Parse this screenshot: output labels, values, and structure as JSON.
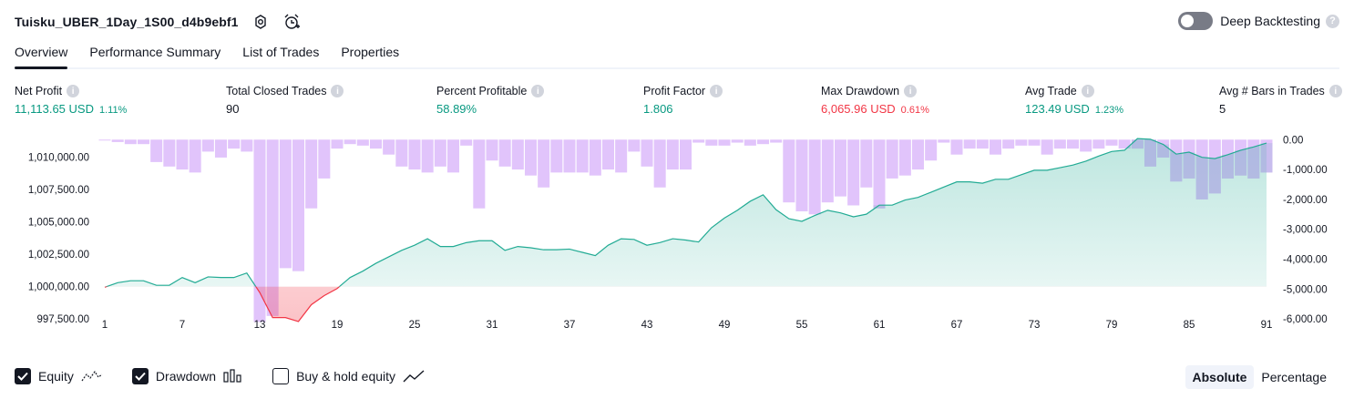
{
  "header": {
    "title": "Tuisku_UBER_1Day_1S00_d4b9ebf1",
    "deep_backtesting_label": "Deep Backtesting",
    "deep_backtesting_enabled": false
  },
  "tabs": [
    {
      "label": "Overview",
      "active": true
    },
    {
      "label": "Performance Summary",
      "active": false
    },
    {
      "label": "List of Trades",
      "active": false
    },
    {
      "label": "Properties",
      "active": false
    }
  ],
  "stats": [
    {
      "label": "Net Profit",
      "value": "11,113.65 USD",
      "pct": "1.11%",
      "color": "#089981"
    },
    {
      "label": "Total Closed Trades",
      "value": "90",
      "pct": "",
      "color": "#131722"
    },
    {
      "label": "Percent Profitable",
      "value": "58.89%",
      "pct": "",
      "color": "#089981"
    },
    {
      "label": "Profit Factor",
      "value": "1.806",
      "pct": "",
      "color": "#089981"
    },
    {
      "label": "Max Drawdown",
      "value": "6,065.96 USD",
      "pct": "0.61%",
      "color": "#f23645"
    },
    {
      "label": "Avg Trade",
      "value": "123.49 USD",
      "pct": "1.23%",
      "color": "#089981"
    },
    {
      "label": "Avg # Bars in Trades",
      "value": "5",
      "pct": "",
      "color": "#131722"
    }
  ],
  "legend": {
    "equity_label": "Equity",
    "equity_checked": true,
    "drawdown_label": "Drawdown",
    "drawdown_checked": true,
    "buyhold_label": "Buy & hold equity",
    "buyhold_checked": false
  },
  "mode": {
    "absolute_label": "Absolute",
    "percentage_label": "Percentage",
    "selected": "Absolute"
  },
  "colors": {
    "equity_line": "#22ab94",
    "equity_fill": "#d5efe8",
    "equity_below_line": "#f23645",
    "drawdown_bar": "#e1c4fb",
    "drawdown_bar_overlap": "#b5b8e4"
  },
  "chart_data": {
    "type": "area",
    "x_tick_labels": [
      "1",
      "7",
      "13",
      "19",
      "25",
      "31",
      "37",
      "43",
      "49",
      "55",
      "61",
      "67",
      "73",
      "79",
      "85",
      "91"
    ],
    "left_axis": {
      "ticks": [
        "1,010,000.00",
        "1,007,500.00",
        "1,005,000.00",
        "1,002,500.00",
        "1,000,000.00",
        "997,500.00"
      ],
      "range": [
        996800,
        1011600
      ],
      "baseline": 1000000
    },
    "right_axis": {
      "ticks": [
        "0.00",
        "-1,000.00",
        "-2,000.00",
        "-3,000.00",
        "-4,000.00",
        "-5,000.00",
        "-6,000.00"
      ],
      "range": [
        -6300,
        100
      ]
    },
    "series": [
      {
        "name": "Equity",
        "values": [
          999950,
          1000300,
          1000450,
          1000450,
          1000100,
          1000100,
          1000700,
          1000300,
          1000750,
          1000700,
          1000700,
          1001050,
          999550,
          997600,
          997600,
          997300,
          998600,
          999300,
          999850,
          1000700,
          1001200,
          1001800,
          1002300,
          1002800,
          1003200,
          1003700,
          1003100,
          1003100,
          1003400,
          1003550,
          1003550,
          1002800,
          1003100,
          1003000,
          1002850,
          1002850,
          1002900,
          1002650,
          1002400,
          1003200,
          1003700,
          1003650,
          1003200,
          1003400,
          1003700,
          1003600,
          1003450,
          1004550,
          1005300,
          1005900,
          1006600,
          1007100,
          1005950,
          1005250,
          1005050,
          1005500,
          1005900,
          1005700,
          1005400,
          1005600,
          1006300,
          1006300,
          1006700,
          1006900,
          1007300,
          1007700,
          1008100,
          1008100,
          1008000,
          1008300,
          1008300,
          1008650,
          1009000,
          1009000,
          1009200,
          1009400,
          1009700,
          1010100,
          1010450,
          1010550,
          1011450,
          1011400,
          1011000,
          1010250,
          1010400,
          1010000,
          1009900,
          1010200,
          1010550,
          1010800,
          1011100
        ]
      },
      {
        "name": "Drawdown",
        "values": [
          -30,
          -80,
          -150,
          -150,
          -750,
          -900,
          -1000,
          -1100,
          -400,
          -600,
          -300,
          -400,
          -6100,
          -5900,
          -4300,
          -4400,
          -2300,
          -1300,
          -300,
          -150,
          -200,
          -300,
          -500,
          -900,
          -1000,
          -1100,
          -900,
          -1100,
          -200,
          -2300,
          -700,
          -900,
          -1000,
          -1200,
          -1600,
          -1100,
          -1100,
          -1100,
          -1200,
          -1000,
          -1100,
          -400,
          -900,
          -1600,
          -1000,
          -1000,
          -100,
          -200,
          -200,
          -100,
          -200,
          -150,
          -100,
          -2100,
          -2400,
          -2500,
          -2100,
          -1900,
          -2200,
          -1600,
          -2300,
          -1300,
          -1200,
          -1000,
          -700,
          -100,
          -500,
          -300,
          -300,
          -500,
          -300,
          -200,
          -200,
          -500,
          -300,
          -300,
          -400,
          -300,
          -200,
          -300,
          -300,
          -900,
          -600,
          -1400,
          -1300,
          -2000,
          -1800,
          -1300,
          -1200,
          -1300,
          -1100
        ]
      }
    ],
    "grid": false,
    "legend_placement": "bottom-left"
  }
}
